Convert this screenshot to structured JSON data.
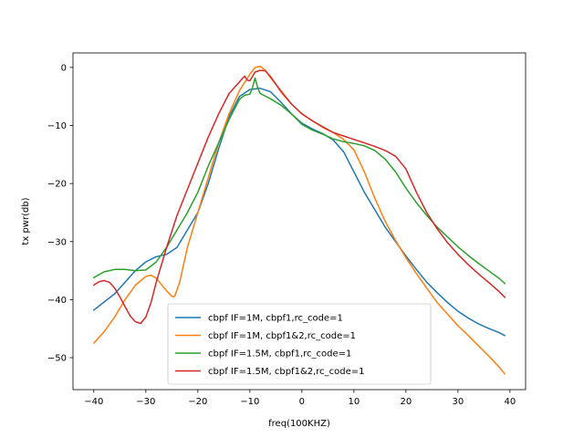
{
  "chart_data": {
    "type": "line",
    "title": "",
    "xlabel": "freq(100KHZ)",
    "ylabel": "tx pwr(db)",
    "xlim": [
      -44,
      43
    ],
    "ylim": [
      -55.5,
      2.5
    ],
    "xticks": [
      -40,
      -30,
      -20,
      -10,
      0,
      10,
      20,
      30,
      40
    ],
    "yticks": [
      0,
      -10,
      -20,
      -30,
      -40,
      -50
    ],
    "grid": false,
    "legend_position": "lower-center",
    "series": [
      {
        "name": "cbpf IF=1M, cbpf1,rc_code=1",
        "color": "#1f77b4",
        "points": [
          [
            -40,
            -41.8
          ],
          [
            -36,
            -39
          ],
          [
            -32,
            -35
          ],
          [
            -30,
            -33.5
          ],
          [
            -28,
            -32.6
          ],
          [
            -26,
            -32.2
          ],
          [
            -24,
            -31
          ],
          [
            -22,
            -28
          ],
          [
            -20,
            -25
          ],
          [
            -18,
            -20
          ],
          [
            -16,
            -14
          ],
          [
            -14,
            -8.5
          ],
          [
            -12,
            -5
          ],
          [
            -10,
            -3.8
          ],
          [
            -8,
            -3.6
          ],
          [
            -6,
            -4.2
          ],
          [
            -4,
            -6
          ],
          [
            -2,
            -8
          ],
          [
            0,
            -9.6
          ],
          [
            2,
            -10.6
          ],
          [
            4,
            -11.4
          ],
          [
            6,
            -12.5
          ],
          [
            8,
            -14.5
          ],
          [
            10,
            -18
          ],
          [
            12,
            -21.5
          ],
          [
            14,
            -24.5
          ],
          [
            16,
            -27.5
          ],
          [
            18,
            -30
          ],
          [
            20,
            -32.5
          ],
          [
            22,
            -34.8
          ],
          [
            24,
            -37
          ],
          [
            26,
            -38.8
          ],
          [
            28,
            -40.5
          ],
          [
            30,
            -42
          ],
          [
            32,
            -43.2
          ],
          [
            34,
            -44.2
          ],
          [
            36,
            -45
          ],
          [
            38,
            -45.7
          ],
          [
            39,
            -46.2
          ]
        ]
      },
      {
        "name": "cbpf IF=1M, cbpf1&2,rc_code=1",
        "color": "#ff7f0e",
        "points": [
          [
            -40,
            -47.5
          ],
          [
            -38,
            -45.5
          ],
          [
            -36,
            -43
          ],
          [
            -34,
            -40
          ],
          [
            -32,
            -37.5
          ],
          [
            -30,
            -36
          ],
          [
            -29,
            -35.8
          ],
          [
            -28,
            -36.3
          ],
          [
            -26,
            -38.5
          ],
          [
            -25,
            -39.4
          ],
          [
            -24.5,
            -39.5
          ],
          [
            -23.5,
            -37
          ],
          [
            -22,
            -31
          ],
          [
            -20,
            -25
          ],
          [
            -18,
            -19
          ],
          [
            -16,
            -13
          ],
          [
            -14,
            -8
          ],
          [
            -12,
            -4
          ],
          [
            -10,
            -1.2
          ],
          [
            -9,
            0
          ],
          [
            -8,
            0.2
          ],
          [
            -7,
            -0.5
          ],
          [
            -6,
            -1.8
          ],
          [
            -4,
            -4
          ],
          [
            -2,
            -6.3
          ],
          [
            0,
            -8
          ],
          [
            2,
            -9.2
          ],
          [
            4,
            -10.2
          ],
          [
            6,
            -11.2
          ],
          [
            8,
            -12.4
          ],
          [
            10,
            -14.2
          ],
          [
            12,
            -18
          ],
          [
            14,
            -22.5
          ],
          [
            16,
            -26.5
          ],
          [
            18,
            -29.8
          ],
          [
            20,
            -32.8
          ],
          [
            22,
            -35.5
          ],
          [
            24,
            -38
          ],
          [
            26,
            -40.5
          ],
          [
            28,
            -42.5
          ],
          [
            30,
            -44.5
          ],
          [
            32,
            -46.2
          ],
          [
            34,
            -48
          ],
          [
            36,
            -49.8
          ],
          [
            38,
            -51.7
          ],
          [
            39,
            -52.8
          ]
        ]
      },
      {
        "name": "cbpf IF=1.5M, cbpf1,rc_code=1",
        "color": "#2ca02c",
        "points": [
          [
            -40,
            -36.2
          ],
          [
            -38,
            -35.2
          ],
          [
            -36,
            -34.8
          ],
          [
            -34,
            -34.8
          ],
          [
            -32,
            -35
          ],
          [
            -30,
            -34.9
          ],
          [
            -28,
            -33.5
          ],
          [
            -26,
            -31
          ],
          [
            -24,
            -28
          ],
          [
            -22,
            -25
          ],
          [
            -20,
            -21.5
          ],
          [
            -18,
            -17
          ],
          [
            -16,
            -13
          ],
          [
            -14,
            -9
          ],
          [
            -12,
            -5.5
          ],
          [
            -11,
            -4.8
          ],
          [
            -10,
            -4.6
          ],
          [
            -9.5,
            -3.5
          ],
          [
            -9,
            -1.8
          ],
          [
            -8.5,
            -3.5
          ],
          [
            -8,
            -4.5
          ],
          [
            -6,
            -5.4
          ],
          [
            -4,
            -6.5
          ],
          [
            -2,
            -8
          ],
          [
            0,
            -9.8
          ],
          [
            2,
            -10.8
          ],
          [
            4,
            -11.5
          ],
          [
            6,
            -12.3
          ],
          [
            8,
            -12.8
          ],
          [
            10,
            -13.1
          ],
          [
            12,
            -13.5
          ],
          [
            14,
            -14.3
          ],
          [
            16,
            -15.8
          ],
          [
            18,
            -18
          ],
          [
            20,
            -20.8
          ],
          [
            22,
            -23.3
          ],
          [
            24,
            -25.5
          ],
          [
            26,
            -27.5
          ],
          [
            28,
            -29.2
          ],
          [
            30,
            -30.9
          ],
          [
            32,
            -32.4
          ],
          [
            34,
            -33.8
          ],
          [
            36,
            -35.1
          ],
          [
            38,
            -36.4
          ],
          [
            39,
            -37.2
          ]
        ]
      },
      {
        "name": "cbpf IF=1.5M, cbpf1&2,rc_code=1",
        "color": "#d62728",
        "points": [
          [
            -40,
            -37.5
          ],
          [
            -39,
            -36.9
          ],
          [
            -38,
            -36.7
          ],
          [
            -37,
            -37
          ],
          [
            -36,
            -38
          ],
          [
            -35,
            -39.5
          ],
          [
            -34,
            -41.2
          ],
          [
            -33,
            -42.8
          ],
          [
            -32,
            -43.8
          ],
          [
            -31,
            -44.1
          ],
          [
            -30,
            -43
          ],
          [
            -29,
            -40.5
          ],
          [
            -28,
            -37
          ],
          [
            -26,
            -31
          ],
          [
            -24,
            -25.5
          ],
          [
            -22,
            -21
          ],
          [
            -20,
            -16.5
          ],
          [
            -18,
            -12
          ],
          [
            -16,
            -8
          ],
          [
            -14,
            -4.5
          ],
          [
            -12,
            -2.5
          ],
          [
            -11,
            -1.5
          ],
          [
            -10.5,
            -2.2
          ],
          [
            -10,
            -2.3
          ],
          [
            -9,
            -0.8
          ],
          [
            -8,
            -0.5
          ],
          [
            -7,
            -0.6
          ],
          [
            -6,
            -1.6
          ],
          [
            -4,
            -4.2
          ],
          [
            -2,
            -6.3
          ],
          [
            0,
            -8
          ],
          [
            2,
            -9.2
          ],
          [
            4,
            -10.3
          ],
          [
            6,
            -11.2
          ],
          [
            8,
            -11.8
          ],
          [
            10,
            -12.4
          ],
          [
            12,
            -13
          ],
          [
            14,
            -13.6
          ],
          [
            16,
            -14.3
          ],
          [
            18,
            -15.3
          ],
          [
            20,
            -17.5
          ],
          [
            22,
            -21.5
          ],
          [
            24,
            -25
          ],
          [
            26,
            -27.8
          ],
          [
            28,
            -30.2
          ],
          [
            30,
            -32.2
          ],
          [
            32,
            -34
          ],
          [
            34,
            -35.6
          ],
          [
            36,
            -37.1
          ],
          [
            38,
            -38.7
          ],
          [
            39,
            -39.6
          ]
        ]
      }
    ]
  }
}
